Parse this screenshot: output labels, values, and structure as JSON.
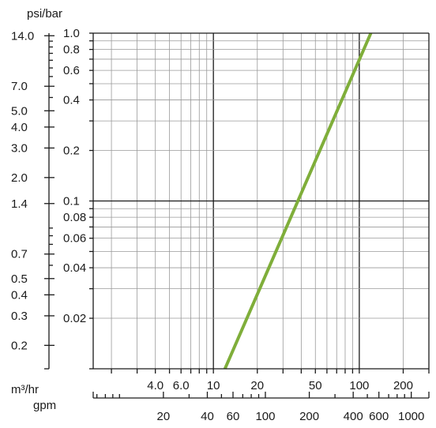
{
  "chart_data": {
    "type": "line",
    "grid": true,
    "scale": "log-log",
    "series": [
      {
        "x": [
          12,
          120
        ],
        "y": [
          0.01,
          1.0
        ],
        "color": "#7fae3a"
      }
    ],
    "axes": {
      "pressure_psi": {
        "label": "psi/bar",
        "ticks": [
          {
            "v": 14.0,
            "t": "14.0"
          },
          {
            "v": 7.0,
            "t": "7.0"
          },
          {
            "v": 5.0,
            "t": "5.0"
          },
          {
            "v": 4.0,
            "t": "4.0"
          },
          {
            "v": 3.0,
            "t": "3.0"
          },
          {
            "v": 2.0,
            "t": "2.0"
          },
          {
            "v": 1.4,
            "t": "1.4"
          },
          {
            "v": 0.7,
            "t": "0.7"
          },
          {
            "v": 0.5,
            "t": "0.5"
          },
          {
            "v": 0.4,
            "t": "0.4"
          },
          {
            "v": 0.3,
            "t": "0.3"
          },
          {
            "v": 0.2,
            "t": "0.2"
          }
        ]
      },
      "pressure_bar": {
        "range": [
          0.01,
          1.0
        ],
        "ticks": [
          {
            "v": 1.0,
            "t": "1.0"
          },
          {
            "v": 0.8,
            "t": "0.8"
          },
          {
            "v": 0.6,
            "t": "0.6"
          },
          {
            "v": 0.4,
            "t": "0.4"
          },
          {
            "v": 0.2,
            "t": "0.2"
          },
          {
            "v": 0.1,
            "t": "0.1"
          },
          {
            "v": 0.08,
            "t": "0.08"
          },
          {
            "v": 0.06,
            "t": "0.06"
          },
          {
            "v": 0.04,
            "t": "0.04"
          },
          {
            "v": 0.02,
            "t": "0.02"
          }
        ]
      },
      "flow_m3hr": {
        "label": "m³/hr",
        "range": [
          1.5,
          300
        ],
        "ticks": [
          {
            "v": 4.0,
            "t": "4.0"
          },
          {
            "v": 6.0,
            "t": "6.0"
          },
          {
            "v": 10,
            "t": "10"
          },
          {
            "v": 20,
            "t": "20"
          },
          {
            "v": 50,
            "t": "50"
          },
          {
            "v": 100,
            "t": "100"
          },
          {
            "v": 200,
            "t": "200"
          }
        ]
      },
      "flow_gpm": {
        "label": "gpm",
        "ticks": [
          {
            "v": 20,
            "t": "20"
          },
          {
            "v": 40,
            "t": "40"
          },
          {
            "v": 60,
            "t": "60"
          },
          {
            "v": 100,
            "t": "100"
          },
          {
            "v": 200,
            "t": "200"
          },
          {
            "v": 400,
            "t": "400"
          },
          {
            "v": 600,
            "t": "600"
          },
          {
            "v": 1000,
            "t": "1000"
          }
        ]
      }
    }
  }
}
